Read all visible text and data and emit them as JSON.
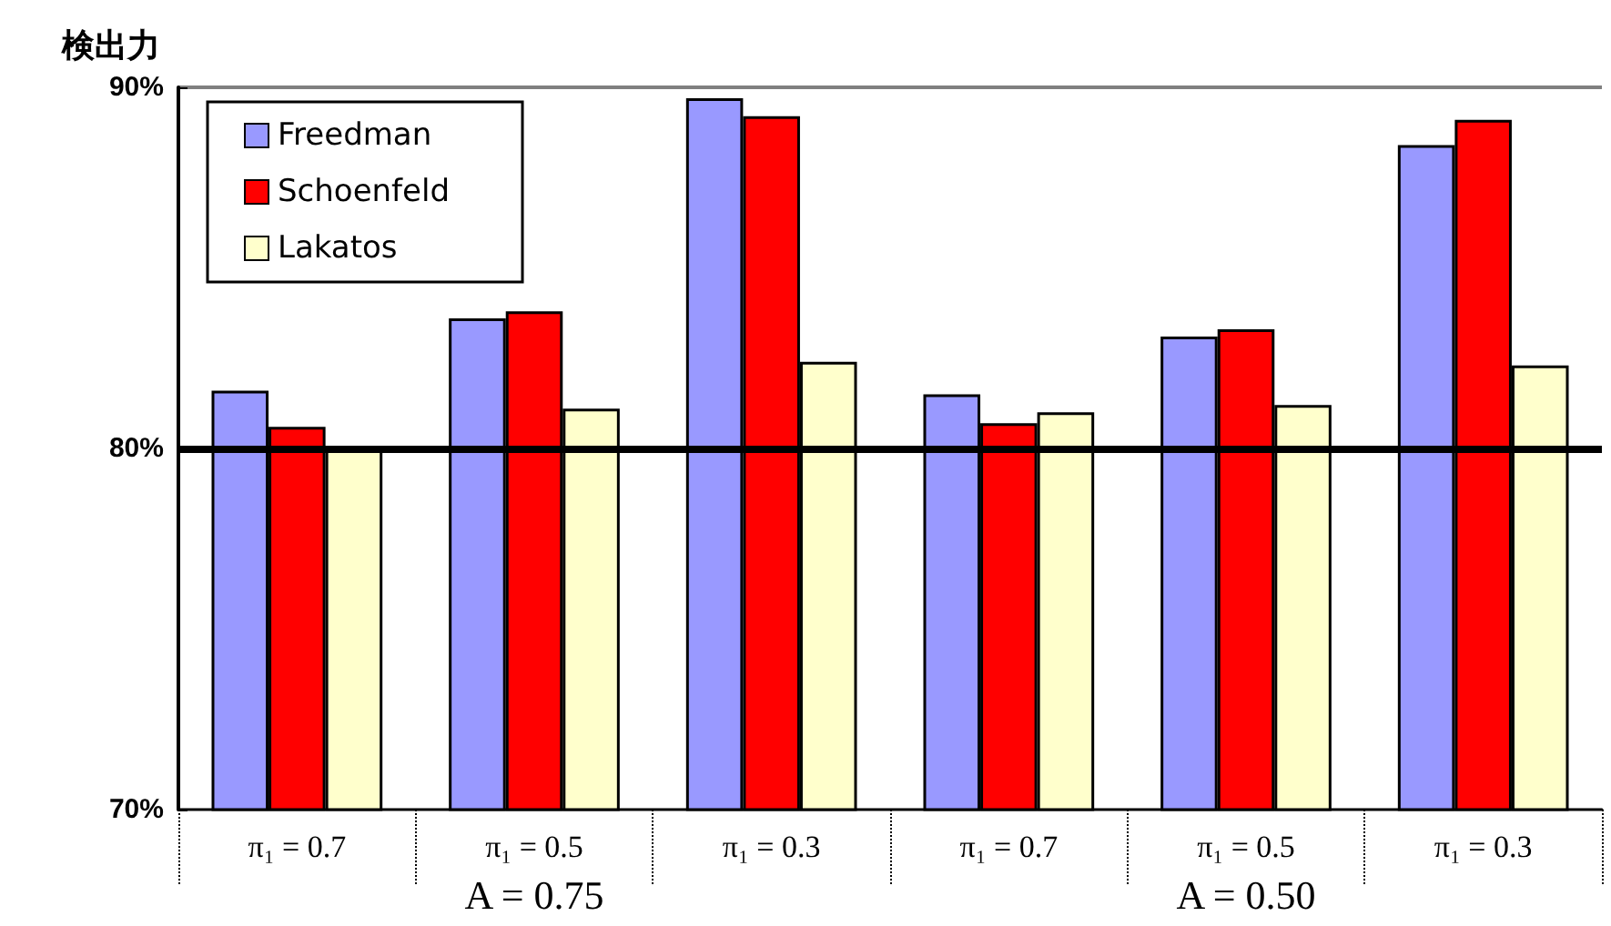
{
  "chart_data": {
    "type": "bar",
    "ylabel": "検出力",
    "categories": [
      "π₁ = 0.7",
      "π₁ = 0.5",
      "π₁ = 0.3",
      "π₁ = 0.7",
      "π₁ = 0.5",
      "π₁ = 0.3"
    ],
    "series": [
      {
        "name": "Freedman",
        "color": "#9999ff",
        "values": [
          81.6,
          83.6,
          89.7,
          81.5,
          83.1,
          88.4
        ]
      },
      {
        "name": "Schoenfeld",
        "color": "#ff0000",
        "values": [
          80.6,
          83.8,
          89.2,
          80.7,
          83.3,
          89.1
        ]
      },
      {
        "name": "Lakatos",
        "color": "#ffffcc",
        "values": [
          80.0,
          81.1,
          82.4,
          81.0,
          81.2,
          82.3
        ]
      }
    ],
    "ylim": [
      70,
      90
    ],
    "yticks": [
      {
        "value": 70,
        "label": "70%"
      },
      {
        "value": 80,
        "label": "80%"
      },
      {
        "value": 90,
        "label": "90%"
      }
    ],
    "ref_lines": [
      {
        "axis": "y",
        "value": 80,
        "color": "#000000"
      }
    ],
    "annotations": [
      "A = 0.75",
      "A = 0.50"
    ],
    "grid": false,
    "legend": "top left"
  }
}
